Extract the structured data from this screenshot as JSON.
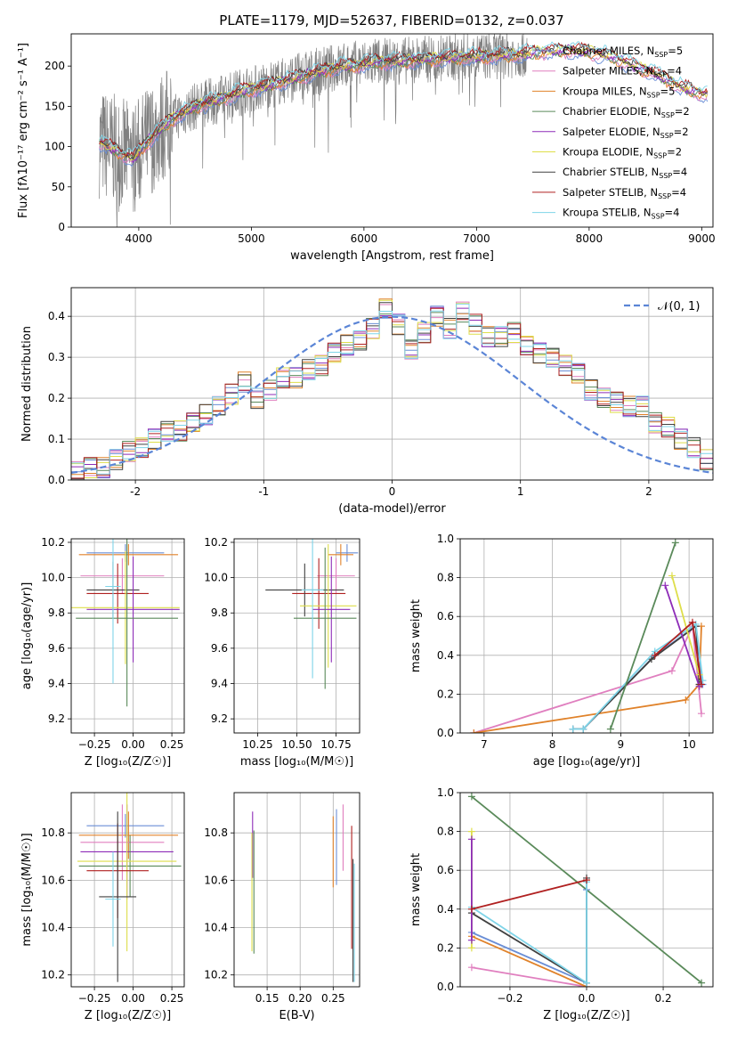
{
  "colors": {
    "Chabrier MILES": "#6a8ed6",
    "Salpeter MILES": "#e07fbf",
    "Kroupa MILES": "#e0822a",
    "Chabrier ELODIE": "#5a8a5a",
    "Salpeter ELODIE": "#8e2cb8",
    "Kroupa ELODIE": "#dede4a",
    "Chabrier STELIB": "#404040",
    "Salpeter STELIB": "#b02020",
    "Kroupa STELIB": "#7fd4e8",
    "data": "#808080",
    "gauss": "#5b85d6"
  },
  "chart_data": [
    {
      "type": "line",
      "title": "PLATE=1179, MJD=52637, FIBERID=0132, z=0.037",
      "xlabel": "wavelength [Angstrom, rest frame]",
      "ylabel": "Flux [fλ10⁻¹⁷ erg cm⁻² s⁻¹ A⁻¹]",
      "xlim": [
        3400,
        9100
      ],
      "ylim": [
        0,
        240
      ],
      "xticks": [
        4000,
        5000,
        6000,
        7000,
        8000,
        9000
      ],
      "yticks": [
        0,
        50,
        100,
        150,
        200
      ],
      "legend_position": "right",
      "legend": [
        {
          "name": "Chabrier MILES",
          "nssp": "5"
        },
        {
          "name": "Salpeter MILES",
          "nssp": "4"
        },
        {
          "name": "Kroupa MILES",
          "nssp": "5"
        },
        {
          "name": "Chabrier ELODIE",
          "nssp": "2"
        },
        {
          "name": "Salpeter ELODIE",
          "nssp": "2"
        },
        {
          "name": "Kroupa ELODIE",
          "nssp": "2"
        },
        {
          "name": "Chabrier STELIB",
          "nssp": "4"
        },
        {
          "name": "Salpeter STELIB",
          "nssp": "4"
        },
        {
          "name": "Kroupa STELIB",
          "nssp": "4"
        }
      ],
      "model_continuum": {
        "x": [
          3650,
          3800,
          3950,
          4100,
          4300,
          4500,
          4700,
          4900,
          5100,
          5300,
          5500,
          5800,
          6100,
          6400,
          6700,
          7000,
          7300,
          7600,
          7800,
          8000,
          8200,
          8400,
          8600,
          8800,
          8950,
          9050
        ],
        "y": [
          105,
          95,
          85,
          110,
          135,
          150,
          158,
          168,
          175,
          182,
          190,
          200,
          205,
          207,
          210,
          212,
          214,
          218,
          220,
          218,
          212,
          200,
          190,
          175,
          168,
          165
        ]
      },
      "data_range": [
        3650,
        7450
      ]
    },
    {
      "type": "bar",
      "xlabel": "(data-model)/error",
      "ylabel": "Normed distribution",
      "xlim": [
        -2.5,
        2.5
      ],
      "ylim": [
        0,
        0.47
      ],
      "xticks": [
        -2,
        -1,
        0,
        1,
        2
      ],
      "yticks": [
        0.0,
        0.1,
        0.2,
        0.3,
        0.4
      ],
      "gaussian_label": "𝒩(0, 1)",
      "legend_position": "top-right",
      "bin_width": 0.1,
      "histogram_centers_start": -2.45,
      "histograms": [
        {
          "series": "Chabrier MILES",
          "values": [
            0.02,
            0.03,
            0.03,
            0.05,
            0.07,
            0.08,
            0.1,
            0.12,
            0.12,
            0.14,
            0.16,
            0.18,
            0.21,
            0.24,
            0.2,
            0.22,
            0.25,
            0.25,
            0.27,
            0.28,
            0.31,
            0.33,
            0.34,
            0.37,
            0.42,
            0.38,
            0.32,
            0.36,
            0.4,
            0.37,
            0.41,
            0.38,
            0.35,
            0.35,
            0.36,
            0.33,
            0.31,
            0.3,
            0.28,
            0.26,
            0.22,
            0.2,
            0.19,
            0.18,
            0.18,
            0.14,
            0.13,
            0.1,
            0.08,
            0.05
          ]
        }
      ]
    },
    {
      "type": "scatter",
      "xlabel": "Z [log₁₀(Z/Z☉)]",
      "ylabel": "age  [log₁₀(age/yr)]",
      "xlim": [
        -0.4,
        0.33
      ],
      "ylim": [
        9.12,
        10.22
      ],
      "xticks": [
        -0.25,
        0.0,
        0.25
      ],
      "xticklabels": [
        "−0.25",
        "0.00",
        "0.25"
      ],
      "yticks": [
        9.2,
        9.4,
        9.6,
        9.8,
        10.0,
        10.2
      ],
      "points": [
        {
          "series": "Chabrier MILES",
          "x": -0.05,
          "y": 10.14,
          "xerr": 0.25,
          "yerr": 0.05
        },
        {
          "series": "Kroupa MILES",
          "x": -0.03,
          "y": 10.13,
          "xerr": 0.32,
          "yerr": 0.06
        },
        {
          "series": "Salpeter MILES",
          "x": -0.07,
          "y": 10.01,
          "xerr": 0.27,
          "yerr": 0.1
        },
        {
          "series": "Salpeter STELIB",
          "x": -0.1,
          "y": 9.91,
          "xerr": 0.2,
          "yerr": 0.17
        },
        {
          "series": "Chabrier STELIB",
          "x": -0.13,
          "y": 9.93,
          "xerr": 0.17,
          "yerr": 0.16
        },
        {
          "series": "Kroupa ELODIE",
          "x": -0.05,
          "y": 9.83,
          "xerr": 0.35,
          "yerr": 0.32
        },
        {
          "series": "Salpeter ELODIE",
          "x": 0.0,
          "y": 9.82,
          "xerr": 0.3,
          "yerr": 0.3
        },
        {
          "series": "Chabrier ELODIE",
          "x": -0.04,
          "y": 9.77,
          "xerr": 0.33,
          "yerr": 0.5
        },
        {
          "series": "Kroupa STELIB",
          "x": -0.13,
          "y": 9.95,
          "xerr": 0.05,
          "yerr": 0.55
        }
      ]
    },
    {
      "type": "scatter",
      "xlabel": "mass [log₁₀(M/M☉)]",
      "ylabel": "",
      "xlim": [
        10.1,
        10.9
      ],
      "ylim": [
        9.12,
        10.22
      ],
      "xticks": [
        10.25,
        10.5,
        10.75
      ],
      "xticklabels": [
        "10.25",
        "10.50",
        "10.75"
      ],
      "yticks": [
        9.2,
        9.4,
        9.6,
        9.8,
        10.0,
        10.2
      ],
      "points": [
        {
          "series": "Chabrier MILES",
          "x": 10.82,
          "y": 10.14,
          "xerr": 0.07,
          "yerr": 0.05
        },
        {
          "series": "Kroupa MILES",
          "x": 10.78,
          "y": 10.13,
          "xerr": 0.08,
          "yerr": 0.06
        },
        {
          "series": "Salpeter MILES",
          "x": 10.75,
          "y": 10.01,
          "xerr": 0.12,
          "yerr": 0.1
        },
        {
          "series": "Salpeter STELIB",
          "x": 10.64,
          "y": 9.91,
          "xerr": 0.17,
          "yerr": 0.2
        },
        {
          "series": "Chabrier STELIB",
          "x": 10.55,
          "y": 9.93,
          "xerr": 0.25,
          "yerr": 0.15
        },
        {
          "series": "Kroupa ELODIE",
          "x": 10.7,
          "y": 9.84,
          "xerr": 0.18,
          "yerr": 0.35
        },
        {
          "series": "Salpeter ELODIE",
          "x": 10.72,
          "y": 9.82,
          "xerr": 0.12,
          "yerr": 0.3
        },
        {
          "series": "Chabrier ELODIE",
          "x": 10.68,
          "y": 9.77,
          "xerr": 0.2,
          "yerr": 0.4
        },
        {
          "series": "Kroupa STELIB",
          "x": 10.6,
          "y": 9.93,
          "xerr": 0.07,
          "yerr": 0.5
        }
      ]
    },
    {
      "type": "line",
      "xlabel": "age  [log₁₀(age/yr)]",
      "ylabel": "mass weight",
      "xlim": [
        6.65,
        10.35
      ],
      "ylim": [
        0,
        1
      ],
      "xticks": [
        7,
        8,
        9,
        10
      ],
      "yticks": [
        0.0,
        0.2,
        0.4,
        0.6,
        0.8,
        1.0
      ],
      "series": [
        {
          "name": "Salpeter MILES",
          "x": [
            6.85,
            9.75,
            10.05,
            10.18
          ],
          "y": [
            0.0,
            0.32,
            0.55,
            0.1
          ]
        },
        {
          "name": "Kroupa MILES",
          "x": [
            6.85,
            9.95,
            10.15,
            10.18
          ],
          "y": [
            0.0,
            0.17,
            0.25,
            0.55
          ]
        },
        {
          "name": "Chabrier MILES",
          "x": [
            8.3,
            8.45,
            9.5,
            10.1,
            10.2
          ],
          "y": [
            0.02,
            0.02,
            0.4,
            0.55,
            0.25
          ]
        },
        {
          "name": "Chabrier STELIB",
          "x": [
            8.3,
            8.45,
            9.45,
            10.1,
            10.15
          ],
          "y": [
            0.02,
            0.02,
            0.38,
            0.55,
            0.25
          ]
        },
        {
          "name": "Kroupa STELIB",
          "x": [
            8.3,
            8.45,
            9.5,
            10.1,
            10.2
          ],
          "y": [
            0.02,
            0.02,
            0.42,
            0.56,
            0.27
          ]
        },
        {
          "name": "Chabrier ELODIE",
          "x": [
            8.85,
            9.8
          ],
          "y": [
            0.02,
            0.98
          ]
        },
        {
          "name": "Salpeter ELODIE",
          "x": [
            9.65,
            10.15
          ],
          "y": [
            0.76,
            0.24
          ]
        },
        {
          "name": "Kroupa ELODIE",
          "x": [
            9.75,
            10.15
          ],
          "y": [
            0.81,
            0.3
          ]
        },
        {
          "name": "Salpeter STELIB",
          "x": [
            9.5,
            10.05,
            10.18
          ],
          "y": [
            0.4,
            0.57,
            0.25
          ]
        }
      ]
    },
    {
      "type": "scatter",
      "xlabel": "Z [log₁₀(Z/Z☉)]",
      "ylabel": "mass [log₁₀(M/M☉)]",
      "xlim": [
        -0.4,
        0.33
      ],
      "ylim": [
        10.15,
        10.97
      ],
      "xticks": [
        -0.25,
        0.0,
        0.25
      ],
      "xticklabels": [
        "−0.25",
        "0.00",
        "0.25"
      ],
      "yticks": [
        10.2,
        10.4,
        10.6,
        10.8
      ],
      "points": [
        {
          "series": "Chabrier MILES",
          "x": -0.05,
          "y": 10.83,
          "xerr": 0.25,
          "yerr": 0.05
        },
        {
          "series": "Kroupa MILES",
          "x": -0.03,
          "y": 10.79,
          "xerr": 0.32,
          "yerr": 0.1
        },
        {
          "series": "Salpeter MILES",
          "x": -0.07,
          "y": 10.76,
          "xerr": 0.27,
          "yerr": 0.16
        },
        {
          "series": "Salpeter ELODIE",
          "x": -0.04,
          "y": 10.72,
          "xerr": 0.3,
          "yerr": 0.2
        },
        {
          "series": "Chabrier ELODIE",
          "x": -0.02,
          "y": 10.66,
          "xerr": 0.33,
          "yerr": 0.13
        },
        {
          "series": "Kroupa ELODIE",
          "x": -0.04,
          "y": 10.68,
          "xerr": 0.32,
          "yerr": 0.38
        },
        {
          "series": "Salpeter STELIB",
          "x": -0.1,
          "y": 10.64,
          "xerr": 0.2,
          "yerr": 0.2
        },
        {
          "series": "Chabrier STELIB",
          "x": -0.1,
          "y": 10.53,
          "xerr": 0.12,
          "yerr": 0.36
        },
        {
          "series": "Kroupa STELIB",
          "x": -0.13,
          "y": 10.52,
          "xerr": 0.05,
          "yerr": 0.2
        }
      ]
    },
    {
      "type": "scatter",
      "xlabel": "E(B-V)",
      "ylabel": "",
      "xlim": [
        0.1,
        0.29
      ],
      "ylim": [
        10.15,
        10.97
      ],
      "xticks": [
        0.15,
        0.2,
        0.25
      ],
      "xticklabels": [
        "0.15",
        "0.20",
        "0.25"
      ],
      "yticks": [
        10.2,
        10.4,
        10.6,
        10.8
      ],
      "points": [
        {
          "series": "Salpeter ELODIE",
          "x": 0.128,
          "y": 10.75,
          "yerr": 0.14
        },
        {
          "series": "Kroupa ELODIE",
          "x": 0.127,
          "y": 10.55,
          "yerr": 0.25
        },
        {
          "series": "Chabrier ELODIE",
          "x": 0.13,
          "y": 10.55,
          "yerr": 0.26
        },
        {
          "series": "Kroupa MILES",
          "x": 0.25,
          "y": 10.72,
          "yerr": 0.15
        },
        {
          "series": "Chabrier MILES",
          "x": 0.255,
          "y": 10.74,
          "yerr": 0.16
        },
        {
          "series": "Salpeter MILES",
          "x": 0.265,
          "y": 10.78,
          "yerr": 0.14
        },
        {
          "series": "Salpeter STELIB",
          "x": 0.278,
          "y": 10.57,
          "yerr": 0.26
        },
        {
          "series": "Chabrier STELIB",
          "x": 0.28,
          "y": 10.43,
          "yerr": 0.26
        },
        {
          "series": "Kroupa STELIB",
          "x": 0.282,
          "y": 10.42,
          "yerr": 0.25
        }
      ]
    },
    {
      "type": "line",
      "xlabel": "Z [log₁₀(Z/Z☉)]",
      "ylabel": "mass weight",
      "xlim": [
        -0.33,
        0.33
      ],
      "ylim": [
        0,
        1
      ],
      "xticks": [
        -0.2,
        0.0,
        0.2
      ],
      "xticklabels": [
        "−0.2",
        "0.0",
        "0.2"
      ],
      "yticks": [
        0.0,
        0.2,
        0.4,
        0.6,
        0.8,
        1.0
      ],
      "series": [
        {
          "name": "Chabrier ELODIE",
          "x": [
            -0.3,
            0.3
          ],
          "y": [
            0.98,
            0.02
          ]
        },
        {
          "name": "Salpeter MILES",
          "x": [
            -0.3,
            0.0
          ],
          "y": [
            0.1,
            0.0
          ]
        },
        {
          "name": "Kroupa MILES",
          "x": [
            -0.3,
            0.0
          ],
          "y": [
            0.26,
            0.0
          ]
        },
        {
          "name": "Chabrier MILES",
          "x": [
            -0.3,
            0.0,
            0.0
          ],
          "y": [
            0.28,
            0.02,
            0.5
          ]
        },
        {
          "name": "Chabrier STELIB",
          "x": [
            -0.3,
            0.0,
            0.0
          ],
          "y": [
            0.38,
            0.02,
            0.56
          ]
        },
        {
          "name": "Kroupa STELIB",
          "x": [
            -0.3,
            0.0,
            0.0
          ],
          "y": [
            0.41,
            0.02,
            0.54
          ]
        },
        {
          "name": "Kroupa ELODIE",
          "x": [
            -0.3,
            -0.3
          ],
          "y": [
            0.8,
            0.2
          ]
        },
        {
          "name": "Salpeter ELODIE",
          "x": [
            -0.3,
            -0.3
          ],
          "y": [
            0.76,
            0.24
          ]
        },
        {
          "name": "Salpeter STELIB",
          "x": [
            -0.3,
            0.0
          ],
          "y": [
            0.4,
            0.55
          ]
        }
      ]
    }
  ]
}
